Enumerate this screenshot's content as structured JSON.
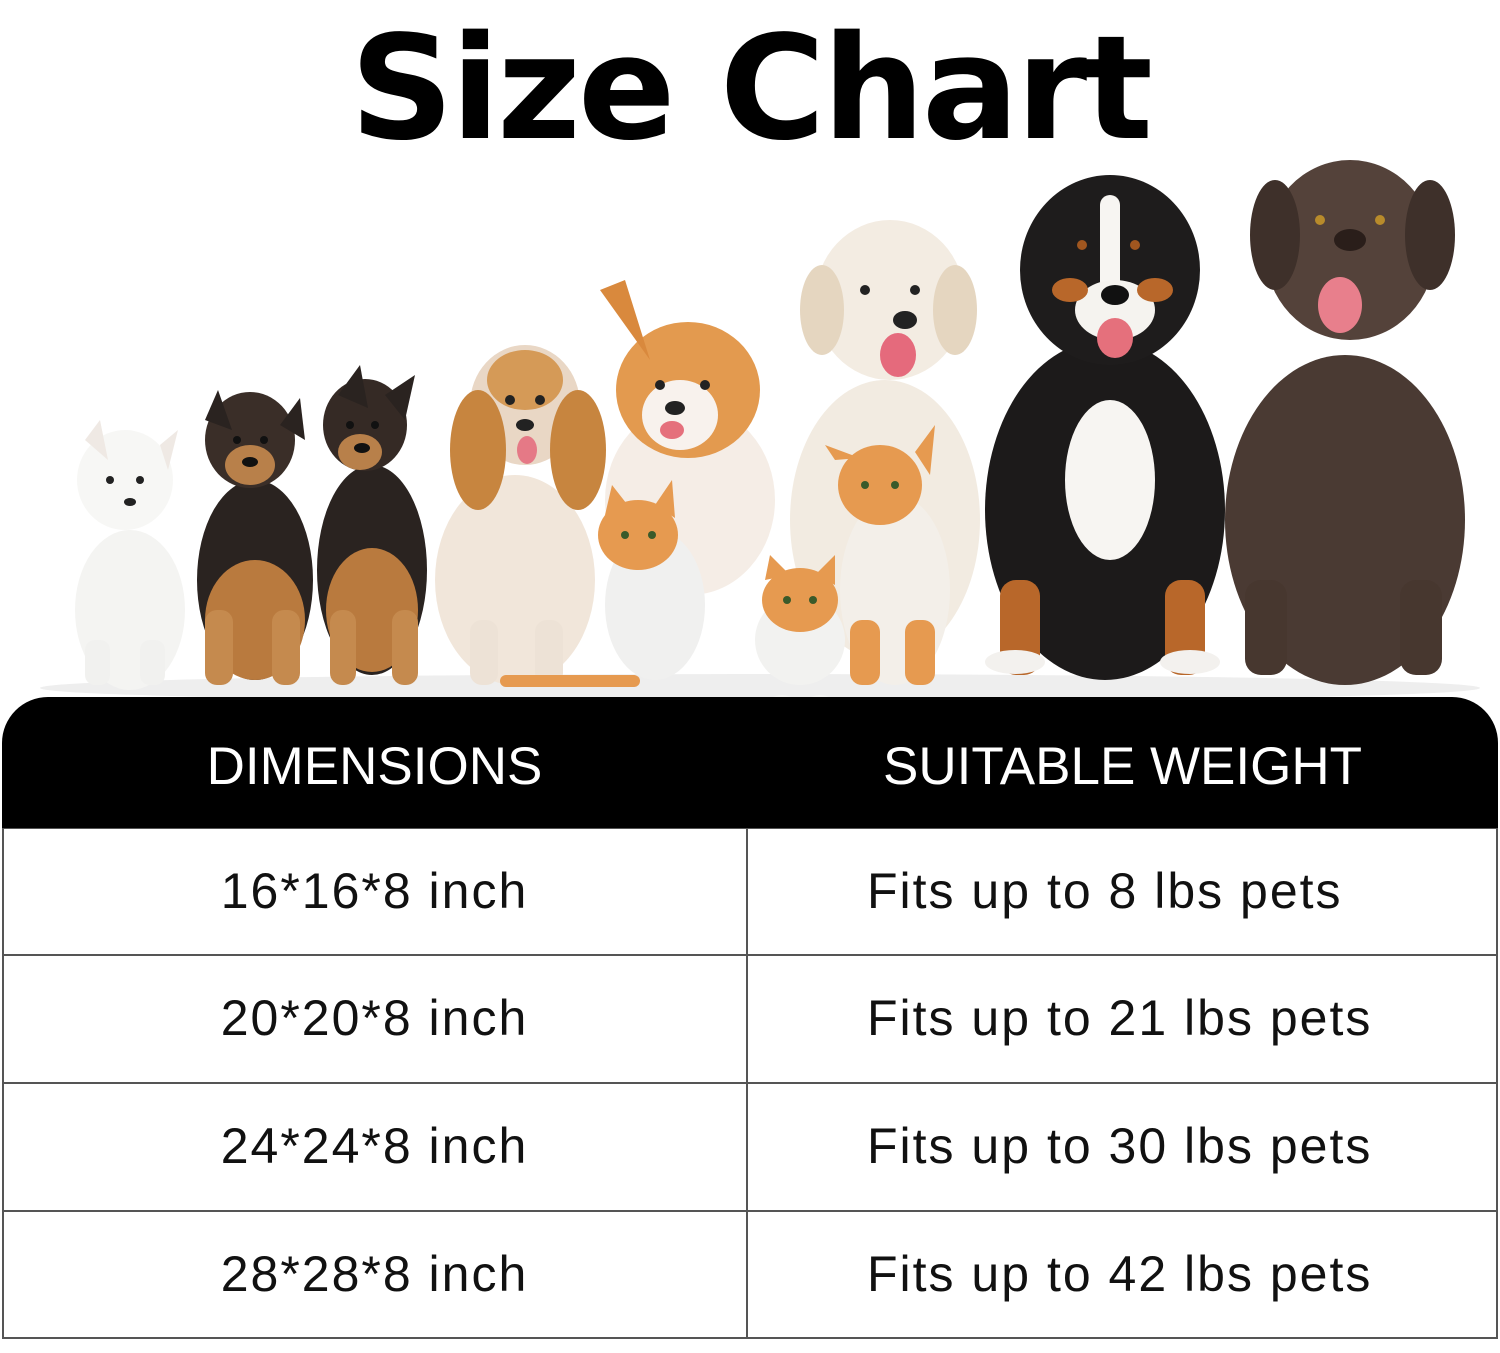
{
  "title": "Size Chart",
  "illustration": {
    "description_icon": "dogs-and-cats-lineup-icon"
  },
  "table": {
    "headers": [
      "DIMENSIONS",
      "SUITABLE WEIGHT"
    ],
    "rows": [
      {
        "dimensions": "16*16*8 inch",
        "weight": "Fits up to 8 lbs pets"
      },
      {
        "dimensions": "20*20*8 inch",
        "weight": "Fits up to 21 lbs pets"
      },
      {
        "dimensions": "24*24*8 inch",
        "weight": "Fits up to 30 lbs pets"
      },
      {
        "dimensions": "28*28*8 inch",
        "weight": "Fits up to 42 lbs pets"
      }
    ]
  },
  "colors": {
    "header_bg": "#000000",
    "header_text": "#ffffff",
    "grid": "#555555"
  }
}
